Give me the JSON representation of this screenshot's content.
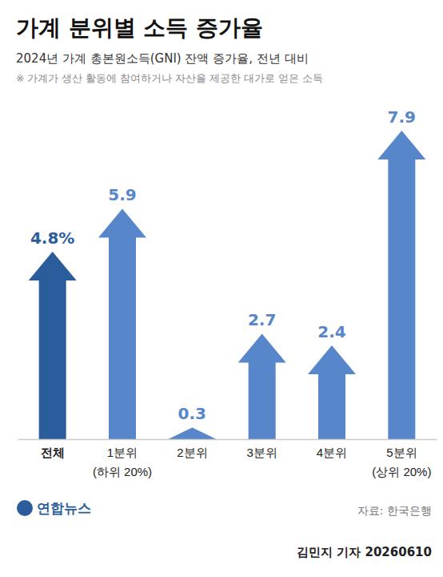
{
  "chart_data": {
    "type": "bar",
    "title": "가계 분위별 소득 증가율",
    "subtitle": "2024년 가계 총본원소득(GNI) 잔액 증가율, 전년 대비",
    "note": "※ 가계가 생산 활동에 참여하거나 자산을 제공한 대가로 얻은 소득",
    "categories": [
      "전체",
      "1분위\n(하위 20%)",
      "2분위",
      "3분위",
      "4분위",
      "5분위\n(상위 20%)"
    ],
    "values": [
      4.8,
      5.9,
      0.3,
      2.7,
      2.4,
      7.9
    ],
    "value_labels": [
      "4.8%",
      "5.9",
      "0.3",
      "2.7",
      "2.4",
      "7.9"
    ],
    "colors": [
      "#2b5d9c",
      "#5786ca",
      "#5786ca",
      "#5786ca",
      "#5786ca",
      "#5786ca"
    ],
    "ylim": [
      0,
      8
    ],
    "yticks": [],
    "tick_labels": "x",
    "data_labels": true,
    "grid": false,
    "source": "자료: 한국은행",
    "publisher": "연합뉴스",
    "byline": "김민지 기자 20260610"
  }
}
